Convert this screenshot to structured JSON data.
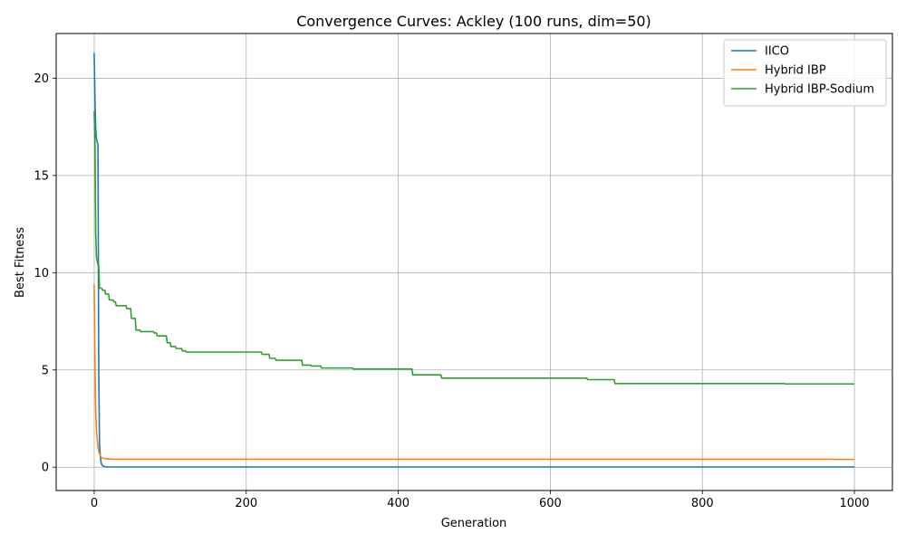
{
  "chart_data": {
    "type": "line",
    "title": "Convergence Curves: Ackley (100 runs, dim=50)",
    "xlabel": "Generation",
    "ylabel": "Best Fitness",
    "xlim": [
      -50,
      1050
    ],
    "ylim": [
      -1.2,
      22.3
    ],
    "xticks": [
      0,
      200,
      400,
      600,
      800,
      1000
    ],
    "yticks": [
      0,
      5,
      10,
      15,
      20
    ],
    "grid": true,
    "legend_position": "top-right",
    "series": [
      {
        "name": "IICO",
        "color": "#1f77b4",
        "points": [
          [
            0,
            21.3
          ],
          [
            1,
            19.0
          ],
          [
            2,
            17.4
          ],
          [
            3,
            16.9
          ],
          [
            4,
            16.7
          ],
          [
            5,
            16.6
          ],
          [
            6,
            5.0
          ],
          [
            7,
            1.2
          ],
          [
            8,
            0.6
          ],
          [
            9,
            0.25
          ],
          [
            10,
            0.12
          ],
          [
            12,
            0.05
          ],
          [
            15,
            0.02
          ],
          [
            20,
            0.01
          ],
          [
            1000,
            0.01
          ]
        ]
      },
      {
        "name": "Hybrid IBP",
        "color": "#ff7f0e",
        "points": [
          [
            0,
            9.4
          ],
          [
            1,
            5.5
          ],
          [
            2,
            2.9
          ],
          [
            3,
            1.9
          ],
          [
            4,
            1.4
          ],
          [
            5,
            1.05
          ],
          [
            6,
            0.8
          ],
          [
            8,
            0.6
          ],
          [
            10,
            0.48
          ],
          [
            15,
            0.43
          ],
          [
            25,
            0.41
          ],
          [
            970,
            0.41
          ],
          [
            972,
            0.4
          ],
          [
            1000,
            0.4
          ]
        ]
      },
      {
        "name": "Hybrid IBP-Sodium",
        "color": "#2ca02c",
        "points": [
          [
            0,
            18.3
          ],
          [
            1,
            16.8
          ],
          [
            2,
            12.0
          ],
          [
            3,
            10.8
          ],
          [
            4,
            10.6
          ],
          [
            5,
            10.4
          ],
          [
            6,
            10.4
          ],
          [
            7,
            9.2
          ],
          [
            10,
            9.2
          ],
          [
            11,
            9.1
          ],
          [
            14,
            9.1
          ],
          [
            15,
            8.9
          ],
          [
            19,
            8.9
          ],
          [
            20,
            8.6
          ],
          [
            25,
            8.6
          ],
          [
            26,
            8.5
          ],
          [
            28,
            8.5
          ],
          [
            29,
            8.3
          ],
          [
            42,
            8.3
          ],
          [
            43,
            8.15
          ],
          [
            48,
            8.15
          ],
          [
            49,
            7.65
          ],
          [
            54,
            7.65
          ],
          [
            55,
            7.05
          ],
          [
            60,
            7.05
          ],
          [
            61,
            6.97
          ],
          [
            78,
            6.97
          ],
          [
            79,
            6.9
          ],
          [
            82,
            6.9
          ],
          [
            83,
            6.75
          ],
          [
            95,
            6.75
          ],
          [
            96,
            6.4
          ],
          [
            100,
            6.4
          ],
          [
            101,
            6.2
          ],
          [
            107,
            6.2
          ],
          [
            108,
            6.1
          ],
          [
            115,
            6.1
          ],
          [
            116,
            5.98
          ],
          [
            120,
            5.98
          ],
          [
            121,
            5.92
          ],
          [
            220,
            5.92
          ],
          [
            221,
            5.8
          ],
          [
            230,
            5.8
          ],
          [
            231,
            5.6
          ],
          [
            238,
            5.6
          ],
          [
            239,
            5.5
          ],
          [
            273,
            5.5
          ],
          [
            274,
            5.25
          ],
          [
            285,
            5.25
          ],
          [
            286,
            5.2
          ],
          [
            298,
            5.2
          ],
          [
            299,
            5.1
          ],
          [
            340,
            5.1
          ],
          [
            341,
            5.05
          ],
          [
            418,
            5.05
          ],
          [
            419,
            4.75
          ],
          [
            456,
            4.75
          ],
          [
            457,
            4.58
          ],
          [
            648,
            4.58
          ],
          [
            649,
            4.5
          ],
          [
            684,
            4.5
          ],
          [
            685,
            4.3
          ],
          [
            908,
            4.3
          ],
          [
            909,
            4.28
          ],
          [
            1000,
            4.28
          ]
        ]
      }
    ]
  }
}
